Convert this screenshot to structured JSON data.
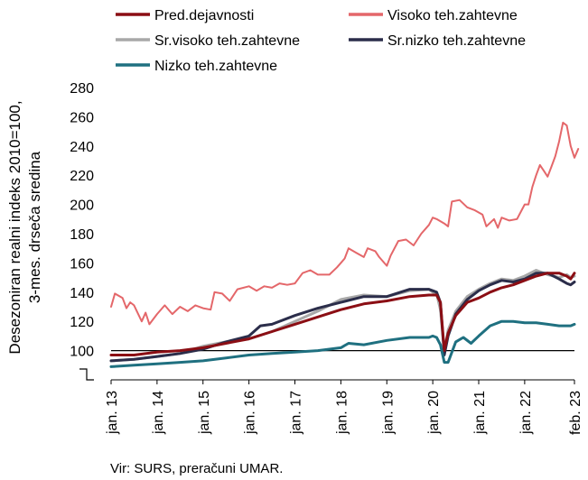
{
  "chart_data": {
    "type": "line",
    "ylabel_line1": "Desezoniran realni indeks 2010=100,",
    "ylabel_line2": "3-mes. drseča sredina",
    "ylim": [
      80,
      280
    ],
    "yticks": [
      100,
      120,
      140,
      160,
      180,
      200,
      220,
      240,
      260,
      280
    ],
    "reference_line": 100,
    "legend_position": "top",
    "x_tick_labels": [
      "jan. 13",
      "jan. 14",
      "jan. 15",
      "jan. 16",
      "jan. 17",
      "jan. 18",
      "jan. 19",
      "jan. 20",
      "jan. 21",
      "jan. 22",
      "feb. 23"
    ],
    "x_tick_dates": [
      "2013-01",
      "2014-01",
      "2015-01",
      "2016-01",
      "2017-01",
      "2018-01",
      "2019-01",
      "2020-01",
      "2021-01",
      "2022-01",
      "2023-02"
    ],
    "x_start": "2013-01",
    "x_end": "2023-02",
    "series": [
      {
        "name": "Pred.dejavnosti",
        "color": "#8b0e14",
        "width": 3,
        "points": [
          [
            "2013-01",
            97
          ],
          [
            "2013-07",
            97
          ],
          [
            "2014-01",
            99
          ],
          [
            "2014-07",
            100
          ],
          [
            "2015-01",
            102
          ],
          [
            "2015-07",
            105
          ],
          [
            "2016-01",
            108
          ],
          [
            "2016-07",
            113
          ],
          [
            "2017-01",
            118
          ],
          [
            "2017-07",
            123
          ],
          [
            "2018-01",
            128
          ],
          [
            "2018-07",
            132
          ],
          [
            "2019-01",
            134
          ],
          [
            "2019-07",
            137
          ],
          [
            "2019-12",
            138
          ],
          [
            "2020-02",
            138
          ],
          [
            "2020-03",
            133
          ],
          [
            "2020-04",
            100
          ],
          [
            "2020-05",
            112
          ],
          [
            "2020-07",
            124
          ],
          [
            "2020-10",
            133
          ],
          [
            "2021-01",
            136
          ],
          [
            "2021-04",
            140
          ],
          [
            "2021-07",
            143
          ],
          [
            "2021-10",
            145
          ],
          [
            "2022-01",
            148
          ],
          [
            "2022-04",
            151
          ],
          [
            "2022-07",
            153
          ],
          [
            "2022-10",
            153
          ],
          [
            "2022-12",
            151
          ],
          [
            "2023-01",
            149
          ],
          [
            "2023-02",
            153
          ]
        ]
      },
      {
        "name": "Visoko teh.zahtevne",
        "color": "#e4676a",
        "width": 2,
        "points": [
          [
            "2013-01",
            130
          ],
          [
            "2013-02",
            139
          ],
          [
            "2013-04",
            136
          ],
          [
            "2013-05",
            129
          ],
          [
            "2013-06",
            133
          ],
          [
            "2013-07",
            131
          ],
          [
            "2013-09",
            120
          ],
          [
            "2013-10",
            126
          ],
          [
            "2013-11",
            118
          ],
          [
            "2014-01",
            125
          ],
          [
            "2014-03",
            131
          ],
          [
            "2014-05",
            125
          ],
          [
            "2014-07",
            130
          ],
          [
            "2014-09",
            127
          ],
          [
            "2014-11",
            131
          ],
          [
            "2015-01",
            129
          ],
          [
            "2015-03",
            128
          ],
          [
            "2015-04",
            140
          ],
          [
            "2015-06",
            139
          ],
          [
            "2015-08",
            134
          ],
          [
            "2015-10",
            142
          ],
          [
            "2016-01",
            144
          ],
          [
            "2016-03",
            141
          ],
          [
            "2016-05",
            144
          ],
          [
            "2016-07",
            143
          ],
          [
            "2016-09",
            146
          ],
          [
            "2016-11",
            145
          ],
          [
            "2017-01",
            146
          ],
          [
            "2017-03",
            153
          ],
          [
            "2017-05",
            155
          ],
          [
            "2017-07",
            152
          ],
          [
            "2017-10",
            152
          ],
          [
            "2017-12",
            157
          ],
          [
            "2018-02",
            163
          ],
          [
            "2018-03",
            170
          ],
          [
            "2018-05",
            167
          ],
          [
            "2018-07",
            164
          ],
          [
            "2018-08",
            170
          ],
          [
            "2018-10",
            168
          ],
          [
            "2018-11",
            164
          ],
          [
            "2019-01",
            158
          ],
          [
            "2019-02",
            165
          ],
          [
            "2019-04",
            175
          ],
          [
            "2019-06",
            176
          ],
          [
            "2019-08",
            172
          ],
          [
            "2019-10",
            180
          ],
          [
            "2019-12",
            186
          ],
          [
            "2020-01",
            191
          ],
          [
            "2020-02",
            190
          ],
          [
            "2020-04",
            187
          ],
          [
            "2020-05",
            185
          ],
          [
            "2020-06",
            202
          ],
          [
            "2020-08",
            203
          ],
          [
            "2020-10",
            198
          ],
          [
            "2020-12",
            196
          ],
          [
            "2021-02",
            193
          ],
          [
            "2021-03",
            185
          ],
          [
            "2021-05",
            190
          ],
          [
            "2021-06",
            184
          ],
          [
            "2021-07",
            191
          ],
          [
            "2021-09",
            189
          ],
          [
            "2021-11",
            190
          ],
          [
            "2022-01",
            200
          ],
          [
            "2022-02",
            200
          ],
          [
            "2022-03",
            212
          ],
          [
            "2022-04",
            220
          ],
          [
            "2022-05",
            227
          ],
          [
            "2022-06",
            223
          ],
          [
            "2022-07",
            219
          ],
          [
            "2022-08",
            226
          ],
          [
            "2022-09",
            233
          ],
          [
            "2022-10",
            243
          ],
          [
            "2022-11",
            256
          ],
          [
            "2022-12",
            254
          ],
          [
            "2023-01",
            240
          ],
          [
            "2023-02",
            232
          ],
          [
            "2023-03",
            238
          ]
        ]
      },
      {
        "name": "Sr.visoko teh.zahtevne",
        "color": "#a8a8a8",
        "width": 3,
        "points": [
          [
            "2013-01",
            93
          ],
          [
            "2013-07",
            94
          ],
          [
            "2014-01",
            96
          ],
          [
            "2014-07",
            98
          ],
          [
            "2015-01",
            103
          ],
          [
            "2015-07",
            106
          ],
          [
            "2016-01",
            108
          ],
          [
            "2016-07",
            113
          ],
          [
            "2017-01",
            120
          ],
          [
            "2017-07",
            127
          ],
          [
            "2018-01",
            135
          ],
          [
            "2018-07",
            138
          ],
          [
            "2019-01",
            137
          ],
          [
            "2019-07",
            141
          ],
          [
            "2019-12",
            142
          ],
          [
            "2020-01",
            140
          ],
          [
            "2020-02",
            139
          ],
          [
            "2020-03",
            128
          ],
          [
            "2020-04",
            100
          ],
          [
            "2020-05",
            114
          ],
          [
            "2020-07",
            127
          ],
          [
            "2020-10",
            137
          ],
          [
            "2021-01",
            142
          ],
          [
            "2021-04",
            146
          ],
          [
            "2021-07",
            149
          ],
          [
            "2021-10",
            148
          ],
          [
            "2022-01",
            151
          ],
          [
            "2022-04",
            155
          ],
          [
            "2022-07",
            152
          ],
          [
            "2022-10",
            150
          ],
          [
            "2022-12",
            152
          ],
          [
            "2023-01",
            150
          ],
          [
            "2023-02",
            151
          ]
        ]
      },
      {
        "name": "Sr.nizko teh.zahtevne",
        "color": "#2b2d4a",
        "width": 3,
        "points": [
          [
            "2013-01",
            93
          ],
          [
            "2013-07",
            94
          ],
          [
            "2014-01",
            96
          ],
          [
            "2014-07",
            98
          ],
          [
            "2015-01",
            101
          ],
          [
            "2015-07",
            106
          ],
          [
            "2016-01",
            110
          ],
          [
            "2016-04",
            117
          ],
          [
            "2016-07",
            118
          ],
          [
            "2017-01",
            124
          ],
          [
            "2017-07",
            129
          ],
          [
            "2018-01",
            133
          ],
          [
            "2018-07",
            137
          ],
          [
            "2019-01",
            137
          ],
          [
            "2019-07",
            142
          ],
          [
            "2019-12",
            142
          ],
          [
            "2020-01",
            141
          ],
          [
            "2020-02",
            140
          ],
          [
            "2020-03",
            133
          ],
          [
            "2020-04",
            97
          ],
          [
            "2020-05",
            110
          ],
          [
            "2020-07",
            125
          ],
          [
            "2020-10",
            135
          ],
          [
            "2021-01",
            141
          ],
          [
            "2021-04",
            145
          ],
          [
            "2021-07",
            148
          ],
          [
            "2021-10",
            147
          ],
          [
            "2022-01",
            149
          ],
          [
            "2022-04",
            153
          ],
          [
            "2022-07",
            153
          ],
          [
            "2022-10",
            149
          ],
          [
            "2022-12",
            146
          ],
          [
            "2023-01",
            145
          ],
          [
            "2023-02",
            147
          ]
        ]
      },
      {
        "name": "Nizko teh.zahtevne",
        "color": "#1f7080",
        "width": 3,
        "points": [
          [
            "2013-01",
            89
          ],
          [
            "2013-07",
            90
          ],
          [
            "2014-01",
            91
          ],
          [
            "2014-07",
            92
          ],
          [
            "2015-01",
            93
          ],
          [
            "2015-07",
            95
          ],
          [
            "2016-01",
            97
          ],
          [
            "2016-07",
            98
          ],
          [
            "2017-01",
            99
          ],
          [
            "2017-07",
            100
          ],
          [
            "2018-01",
            102
          ],
          [
            "2018-03",
            105
          ],
          [
            "2018-07",
            104
          ],
          [
            "2019-01",
            107
          ],
          [
            "2019-07",
            109
          ],
          [
            "2019-12",
            109
          ],
          [
            "2020-01",
            110
          ],
          [
            "2020-02",
            109
          ],
          [
            "2020-03",
            104
          ],
          [
            "2020-04",
            92
          ],
          [
            "2020-05",
            92
          ],
          [
            "2020-07",
            106
          ],
          [
            "2020-09",
            109
          ],
          [
            "2020-11",
            105
          ],
          [
            "2021-01",
            110
          ],
          [
            "2021-04",
            117
          ],
          [
            "2021-07",
            120
          ],
          [
            "2021-10",
            120
          ],
          [
            "2022-01",
            119
          ],
          [
            "2022-04",
            119
          ],
          [
            "2022-07",
            118
          ],
          [
            "2022-10",
            117
          ],
          [
            "2023-01",
            117
          ],
          [
            "2023-02",
            118
          ]
        ]
      }
    ],
    "source": "Vir: SURS, preračuni UMAR."
  }
}
